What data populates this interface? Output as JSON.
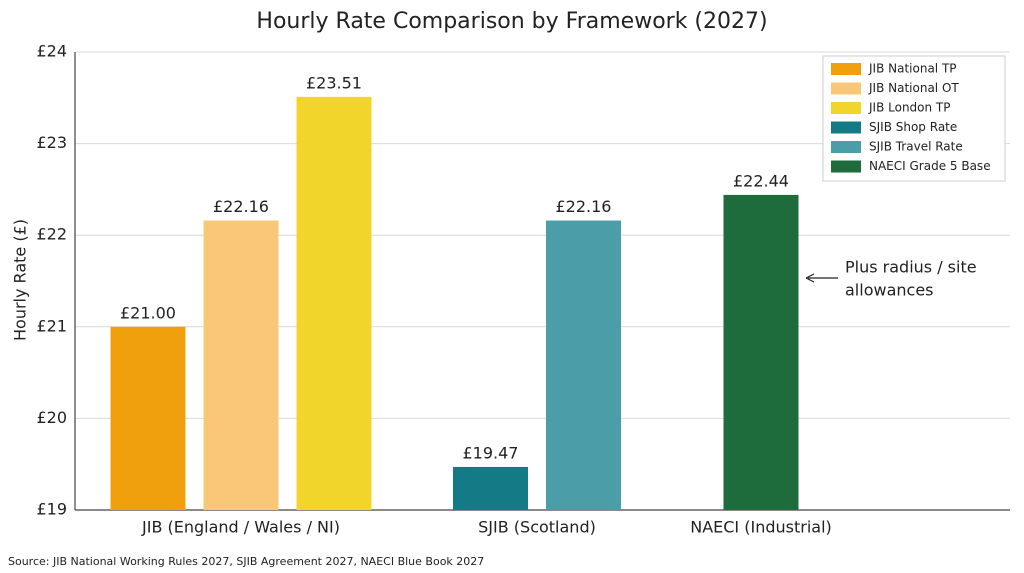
{
  "chart_data": {
    "type": "bar",
    "title": "Hourly Rate Comparison by Framework (2027)",
    "y_label": "Hourly Rate (£)",
    "categories": [
      "JIB (England / Wales / NI)",
      "SJIB (Scotland)",
      "NAECI (Industrial)"
    ],
    "series": [
      {
        "name": "JIB National TP",
        "color": "#f0a00c",
        "values": [
          21.0,
          null,
          null
        ],
        "value_labels": [
          "£21.00",
          null,
          null
        ]
      },
      {
        "name": "JIB National OT",
        "color": "#f8c878",
        "values": [
          22.16,
          null,
          null
        ],
        "value_labels": [
          "£22.16",
          null,
          null
        ]
      },
      {
        "name": "JIB London TP",
        "color": "#f2d52a",
        "values": [
          23.51,
          null,
          null
        ],
        "value_labels": [
          "£23.51",
          null,
          null
        ]
      },
      {
        "name": "SJIB Shop Rate",
        "color": "#137a86",
        "values": [
          null,
          19.47,
          null
        ],
        "value_labels": [
          null,
          "£19.47",
          null
        ]
      },
      {
        "name": "SJIB Travel Rate",
        "color": "#4b9ea8",
        "values": [
          null,
          22.16,
          null
        ],
        "value_labels": [
          null,
          "£22.16",
          null
        ]
      },
      {
        "name": "NAECI Grade 5 Base",
        "color": "#1e6b3c",
        "values": [
          null,
          null,
          22.44
        ],
        "value_labels": [
          null,
          null,
          "£22.44"
        ]
      }
    ],
    "ylim": [
      19,
      24
    ],
    "yticks": [
      {
        "value": 19,
        "label": "£19"
      },
      {
        "value": 20,
        "label": "£20"
      },
      {
        "value": 21,
        "label": "£21"
      },
      {
        "value": 22,
        "label": "£22"
      },
      {
        "value": 23,
        "label": "£23"
      },
      {
        "value": 24,
        "label": "£24"
      }
    ],
    "grid": true,
    "legend": "upper-right",
    "annotation": [
      "Plus radius / site",
      "allowances"
    ],
    "source": "Source: JIB National Working Rules 2027, SJIB Agreement 2027, NAECI Blue Book 2027"
  }
}
